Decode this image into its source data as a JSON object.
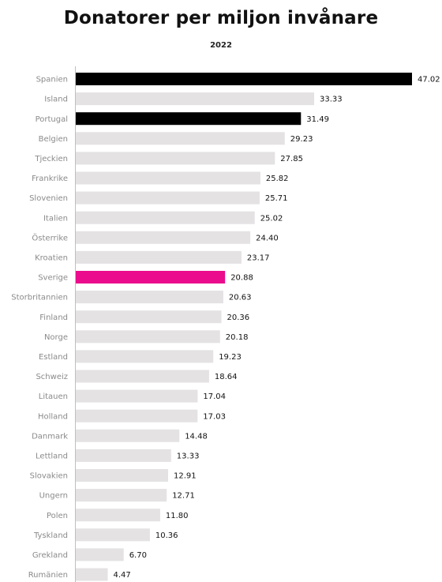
{
  "chart_data": {
    "type": "bar",
    "orientation": "horizontal",
    "title": "Donatorer per miljon invånare",
    "subtitle": "2022",
    "xlabel": "",
    "ylabel": "",
    "xlim": [
      0,
      47.02
    ],
    "grid": false,
    "categories": [
      "Spanien",
      "Island",
      "Portugal",
      "Belgien",
      "Tjeckien",
      "Frankrike",
      "Slovenien",
      "Italien",
      "Österrike",
      "Kroatien",
      "Sverige",
      "Storbritannien",
      "Finland",
      "Norge",
      "Estland",
      "Schweiz",
      "Litauen",
      "Holland",
      "Danmark",
      "Lettland",
      "Slovakien",
      "Ungern",
      "Polen",
      "Tyskland",
      "Grekland",
      "Rumänien"
    ],
    "values": [
      47.02,
      33.33,
      31.49,
      29.23,
      27.85,
      25.82,
      25.71,
      25.02,
      24.4,
      23.17,
      20.88,
      20.63,
      20.36,
      20.18,
      19.23,
      18.64,
      17.04,
      17.03,
      14.48,
      13.33,
      12.91,
      12.71,
      11.8,
      10.36,
      6.7,
      4.47
    ],
    "value_labels": [
      "47.02",
      "33.33",
      "31.49",
      "29.23",
      "27.85",
      "25.82",
      "25.71",
      "25.02",
      "24.40",
      "23.17",
      "20.88",
      "20.63",
      "20.36",
      "20.18",
      "19.23",
      "18.64",
      "17.04",
      "17.03",
      "14.48",
      "13.33",
      "12.91",
      "12.71",
      "11.80",
      "10.36",
      "6.70",
      "4.47"
    ],
    "colors": {
      "default": "#e4e2e3",
      "highlight_dark": "#000000",
      "highlight_accent": "#ea0c8c",
      "axis": "#bfbfbf"
    },
    "highlights": {
      "Spanien": "highlight_dark",
      "Portugal": "highlight_dark",
      "Sverige": "highlight_accent"
    }
  }
}
